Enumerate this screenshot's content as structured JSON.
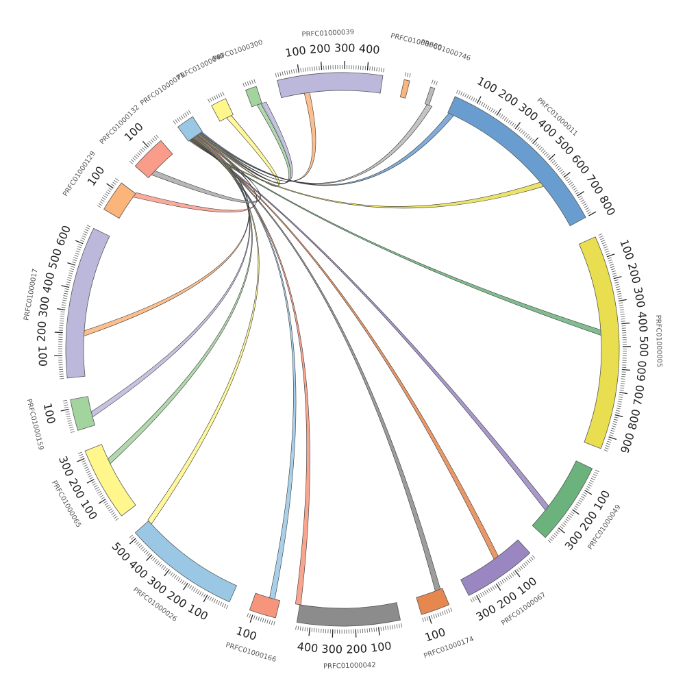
{
  "chart_data": {
    "type": "chord",
    "title": "",
    "segments": [
      {
        "name": "PRFC01000011",
        "length": 800,
        "color": "#6a9dcf",
        "labels": [
          "100",
          "200",
          "300",
          "400",
          "500",
          "600",
          "700",
          "800"
        ]
      },
      {
        "name": "PRFC01000005",
        "length": 960,
        "color": "#e9de4f",
        "labels": [
          "100",
          "200",
          "300",
          "400",
          "500",
          "600",
          "700",
          "800",
          "900"
        ]
      },
      {
        "name": "PRFC01000049",
        "length": 370,
        "color": "#6bb27c",
        "labels": [
          "100",
          "200",
          "300"
        ]
      },
      {
        "name": "PRFC01000067",
        "length": 330,
        "color": "#9a87c2",
        "labels": [
          "100",
          "200",
          "300"
        ]
      },
      {
        "name": "PRFC01000174",
        "length": 130,
        "color": "#e5874f",
        "labels": [
          "100"
        ]
      },
      {
        "name": "PRFC01000042",
        "length": 460,
        "color": "#8c8c8c",
        "labels": [
          "100",
          "200",
          "300",
          "400"
        ]
      },
      {
        "name": "PRFC01000166",
        "length": 120,
        "color": "#f7957c",
        "labels": [
          "100"
        ]
      },
      {
        "name": "PRFC01000026",
        "length": 520,
        "color": "#9ac8e4",
        "labels": [
          "100",
          "200",
          "300",
          "400",
          "500"
        ]
      },
      {
        "name": "PRFC01000065",
        "length": 330,
        "color": "#fff68c",
        "labels": [
          "100",
          "200",
          "300"
        ]
      },
      {
        "name": "PRFC01000159",
        "length": 140,
        "color": "#a3d49e",
        "labels": [
          "100"
        ]
      },
      {
        "name": "PRFC01000017",
        "length": 680,
        "color": "#bcb8dc",
        "labels": [
          "100",
          "200",
          "300",
          "400",
          "500",
          "600"
        ]
      },
      {
        "name": "PRFC01000129",
        "length": 140,
        "color": "#fbb479",
        "labels": [
          "100"
        ]
      },
      {
        "name": "PRFC01000132",
        "length": 160,
        "color": "#f99c8a",
        "labels": [
          "100"
        ]
      },
      {
        "name": "PRFC01000071",
        "length": 80,
        "color": "#9ac8e4",
        "labels": []
      },
      {
        "name": "PRFC01000040",
        "length": 70,
        "color": "#fff68c",
        "labels": []
      },
      {
        "name": "PRFC01000300",
        "length": 50,
        "color": "#a3d49e",
        "labels": []
      },
      {
        "name": "PRFC01000039",
        "length": 470,
        "color": "#bcb8dc",
        "labels": [
          "100",
          "200",
          "300",
          "400"
        ]
      },
      {
        "name": "PRFC01000060",
        "length": 25,
        "color": "#fbb479",
        "labels": []
      },
      {
        "name": "PRFC01000746",
        "length": 20,
        "color": "#bbbbbb",
        "labels": []
      }
    ],
    "links": [
      {
        "source": "PRFC01000071",
        "target": "PRFC01000011",
        "tpos": 550,
        "color": "#e9de4f"
      },
      {
        "source": "PRFC01000071",
        "target": "PRFC01000005",
        "tpos": 420,
        "color": "#6bb27c"
      },
      {
        "source": "PRFC01000071",
        "target": "PRFC01000049",
        "tpos": 250,
        "color": "#9a87c2"
      },
      {
        "source": "PRFC01000071",
        "target": "PRFC01000067",
        "tpos": 120,
        "color": "#e5874f"
      },
      {
        "source": "PRFC01000071",
        "target": "PRFC01000174",
        "tpos": 10,
        "color": "#8c8c8c"
      },
      {
        "source": "PRFC01000071",
        "target": "PRFC01000042",
        "tpos": 455,
        "color": "#f7957c"
      },
      {
        "source": "PRFC01000071",
        "target": "PRFC01000166",
        "tpos": 25,
        "color": "#9ac8e4"
      },
      {
        "source": "PRFC01000071",
        "target": "PRFC01000026",
        "tpos": 500,
        "color": "#fff68c"
      },
      {
        "source": "PRFC01000071",
        "target": "PRFC01000065",
        "tpos": 230,
        "color": "#a3d49e"
      },
      {
        "source": "PRFC01000071",
        "target": "PRFC01000159",
        "tpos": 40,
        "color": "#bcb8dc"
      },
      {
        "source": "PRFC01000071",
        "target": "PRFC01000017",
        "tpos": 190,
        "color": "#fbb479"
      },
      {
        "source": "PRFC01000071",
        "target": "PRFC01000129",
        "tpos": 120,
        "color": "#f99c8a"
      },
      {
        "source": "PRFC01000071",
        "target": "PRFC01000132",
        "tpos": 20,
        "color": "#aaaaaa"
      },
      {
        "source": "PRFC01000071",
        "target": "PRFC01000040",
        "tpos": 35,
        "color": "#fff68c"
      },
      {
        "source": "PRFC01000071",
        "target": "PRFC01000300",
        "tpos": 25,
        "color": "#a3d49e"
      },
      {
        "source": "PRFC01000071",
        "target": "PRFC01000300",
        "tpos": 45,
        "color": "#bcb8dc"
      },
      {
        "source": "PRFC01000071",
        "target": "PRFC01000039",
        "tpos": 110,
        "color": "#fbb479"
      },
      {
        "source": "PRFC01000071",
        "target": "PRFC01000746",
        "tpos": 10,
        "color": "#bbbbbb"
      },
      {
        "source": "PRFC01000071",
        "target": "PRFC01000011",
        "tpos": 5,
        "color": "#6a9dcf"
      }
    ]
  }
}
